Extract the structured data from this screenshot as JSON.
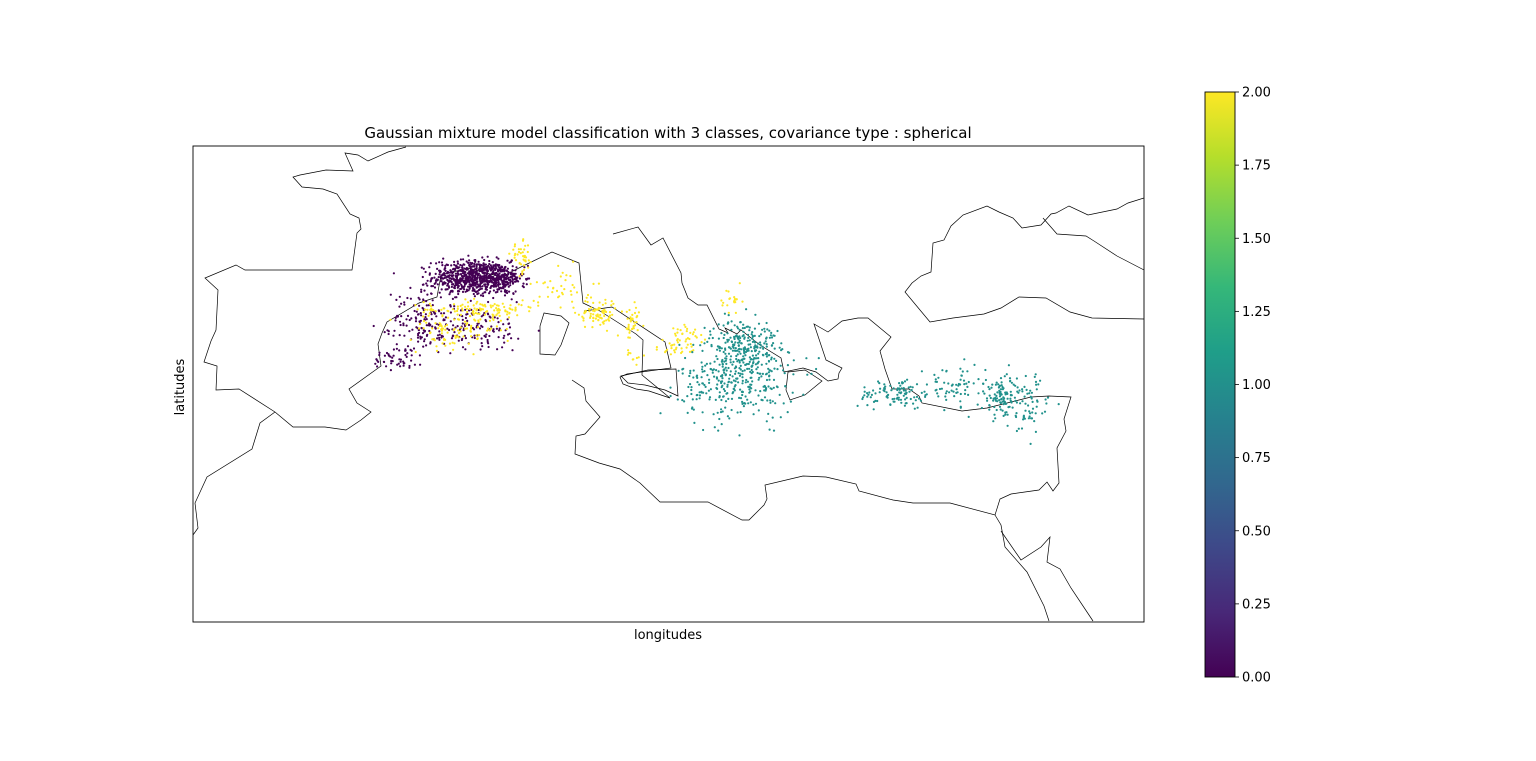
{
  "chart_data": {
    "type": "scatter",
    "title": "Gaussian mixture model classification with 3 classes, covariance type : spherical",
    "xlabel": "longitudes",
    "ylabel": "latitudes",
    "xlim": [
      -10,
      40
    ],
    "ylim": [
      25,
      50
    ],
    "colorbar": {
      "colormap": "viridis",
      "range": [
        0.0,
        2.0
      ],
      "ticks": [
        "0.00",
        "0.25",
        "0.50",
        "0.75",
        "1.00",
        "1.25",
        "1.50",
        "1.75",
        "2.00"
      ],
      "colors": [
        "#440154",
        "#482878",
        "#3e4989",
        "#31688e",
        "#26828e",
        "#1f9e89",
        "#35b779",
        "#6ece58",
        "#b5de2b",
        "#fde725"
      ]
    },
    "classes": [
      {
        "value": 0,
        "color": "#440154"
      },
      {
        "value": 1,
        "color": "#21918c"
      },
      {
        "value": 2,
        "color": "#fde725"
      }
    ],
    "clusters": [
      {
        "class": 0,
        "lon": 4.6,
        "lat": 43.1,
        "slon": 1.0,
        "slat": 0.45,
        "n": 650
      },
      {
        "class": 0,
        "lon": 6.2,
        "lat": 43.0,
        "slon": 0.6,
        "slat": 0.4,
        "n": 200
      },
      {
        "class": 0,
        "lon": 2.0,
        "lat": 41.0,
        "slon": 0.7,
        "slat": 0.9,
        "n": 110
      },
      {
        "class": 0,
        "lon": 4.5,
        "lat": 40.4,
        "slon": 1.6,
        "slat": 0.6,
        "n": 150
      },
      {
        "class": 0,
        "lon": 0.8,
        "lat": 38.9,
        "slon": 0.7,
        "slat": 0.35,
        "n": 50
      },
      {
        "class": 2,
        "lon": 5.2,
        "lat": 41.4,
        "slon": 1.5,
        "slat": 0.25,
        "n": 120
      },
      {
        "class": 2,
        "lon": 3.8,
        "lat": 40.4,
        "slon": 1.2,
        "slat": 0.5,
        "n": 90
      },
      {
        "class": 2,
        "lon": 7.3,
        "lat": 44.1,
        "slon": 0.3,
        "slat": 0.4,
        "n": 40
      },
      {
        "class": 2,
        "lon": 11.3,
        "lat": 41.2,
        "slon": 0.5,
        "slat": 0.4,
        "n": 80
      },
      {
        "class": 2,
        "lon": 9.5,
        "lat": 42.6,
        "slon": 0.8,
        "slat": 0.5,
        "n": 40
      },
      {
        "class": 2,
        "lon": 13.1,
        "lat": 40.6,
        "slon": 0.2,
        "slat": 0.5,
        "n": 35
      },
      {
        "class": 2,
        "lon": 18.3,
        "lat": 41.8,
        "slon": 0.3,
        "slat": 0.4,
        "n": 20
      },
      {
        "class": 2,
        "lon": 16.0,
        "lat": 40.2,
        "slon": 0.5,
        "slat": 0.3,
        "n": 25
      },
      {
        "class": 2,
        "lon": 15.5,
        "lat": 39.4,
        "slon": 0.6,
        "slat": 0.3,
        "n": 30
      },
      {
        "class": 2,
        "lon": 13.2,
        "lat": 39.0,
        "slon": 0.2,
        "slat": 0.2,
        "n": 10
      },
      {
        "class": 1,
        "lon": 19.0,
        "lat": 39.7,
        "slon": 0.9,
        "slat": 0.6,
        "n": 200
      },
      {
        "class": 1,
        "lon": 18.6,
        "lat": 37.7,
        "slon": 1.5,
        "slat": 1.0,
        "n": 350
      },
      {
        "class": 1,
        "lon": 27.0,
        "lat": 37.0,
        "slon": 1.0,
        "slat": 0.4,
        "n": 100
      },
      {
        "class": 1,
        "lon": 30.0,
        "lat": 37.4,
        "slon": 0.8,
        "slat": 0.5,
        "n": 60
      },
      {
        "class": 1,
        "lon": 32.6,
        "lat": 36.8,
        "slon": 0.6,
        "slat": 0.6,
        "n": 120
      },
      {
        "class": 1,
        "lon": 34.0,
        "lat": 36.3,
        "slon": 0.5,
        "slat": 0.8,
        "n": 50
      }
    ]
  }
}
